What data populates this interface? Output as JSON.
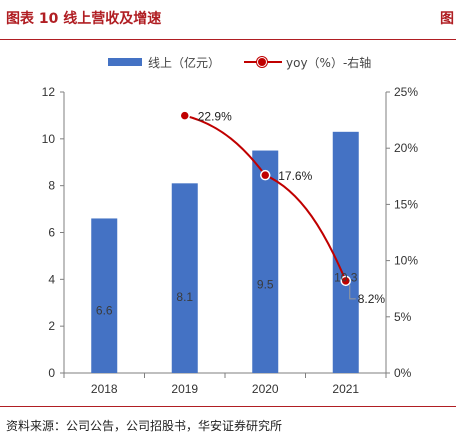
{
  "header": {
    "figure_title": "图表 10 线上营收及增速",
    "right_label": "图"
  },
  "legend": {
    "bar_label": "线上（亿元）",
    "line_label": "yoy（%）-右轴"
  },
  "source": "资料来源：公司公告，公司招股书，华安证券研究所",
  "colors": {
    "bar": "#4472c4",
    "line": "#c00000",
    "accent": "#b01e23"
  },
  "chart_data": {
    "type": "bar",
    "categories": [
      "2018",
      "2019",
      "2020",
      "2021"
    ],
    "series": [
      {
        "name": "线上（亿元）",
        "type": "bar",
        "axis": "left",
        "values": [
          6.6,
          8.1,
          9.5,
          10.3
        ],
        "labels": [
          "6.6",
          "8.1",
          "9.5",
          "10.3"
        ]
      },
      {
        "name": "yoy（%）-右轴",
        "type": "line",
        "axis": "right",
        "values": [
          null,
          22.9,
          17.6,
          8.2
        ],
        "labels": [
          "",
          "22.9%",
          "17.6%",
          "8.2%"
        ]
      }
    ],
    "y_left": {
      "range": [
        0,
        12
      ],
      "ticks": [
        0,
        2,
        4,
        6,
        8,
        10,
        12
      ],
      "tick_labels": [
        "0",
        "2",
        "4",
        "6",
        "8",
        "10",
        "12"
      ]
    },
    "y_right": {
      "range": [
        0,
        25
      ],
      "ticks": [
        0,
        5,
        10,
        15,
        20,
        25
      ],
      "tick_labels": [
        "0%",
        "5%",
        "10%",
        "15%",
        "20%",
        "25%"
      ]
    },
    "grid": false,
    "legend_position": "top"
  }
}
